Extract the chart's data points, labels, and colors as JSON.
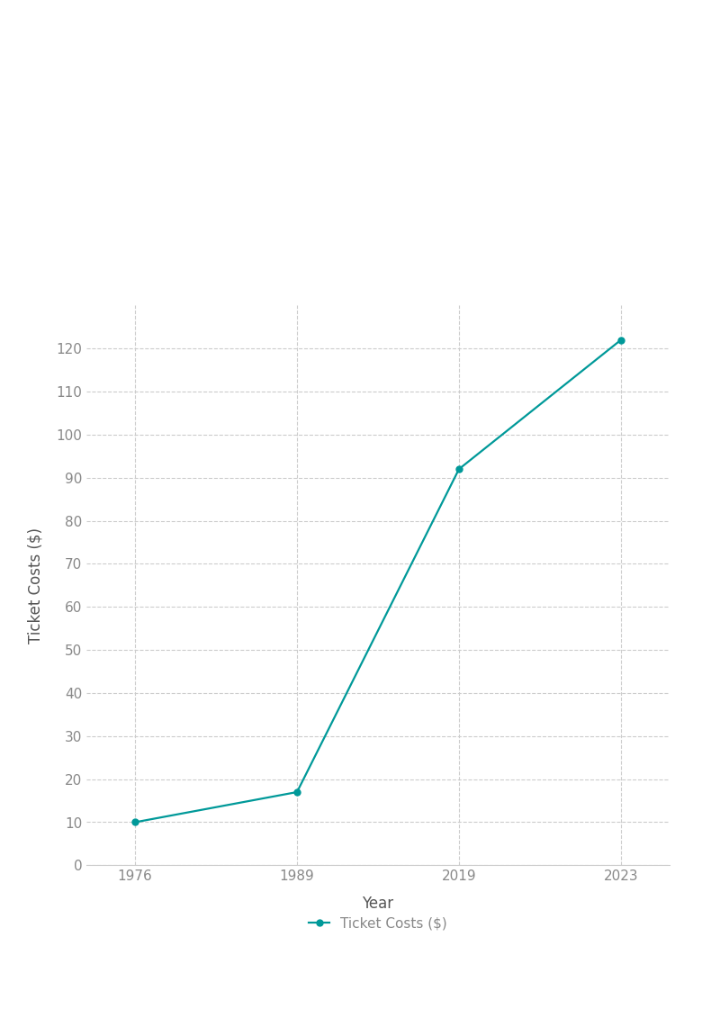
{
  "x_labels": [
    "1976",
    "1989",
    "2019",
    "2023"
  ],
  "x_positions": [
    0,
    1,
    2,
    3
  ],
  "y": [
    10,
    17,
    92,
    122
  ],
  "line_color": "#009999",
  "marker_color": "#009999",
  "marker_style": "o",
  "marker_size": 5,
  "line_width": 1.6,
  "xlabel": "Year",
  "ylabel": "Ticket Costs ($)",
  "legend_label": "Ticket Costs ($)",
  "ylim": [
    0,
    130
  ],
  "yticks": [
    0,
    10,
    20,
    30,
    40,
    50,
    60,
    70,
    80,
    90,
    100,
    110,
    120
  ],
  "grid_color": "#cccccc",
  "grid_style": "--",
  "background_color": "#ffffff",
  "tick_label_color": "#888888",
  "axis_label_color": "#555555",
  "tick_fontsize": 11,
  "axis_label_fontsize": 12,
  "xlim": [
    -0.3,
    3.3
  ]
}
